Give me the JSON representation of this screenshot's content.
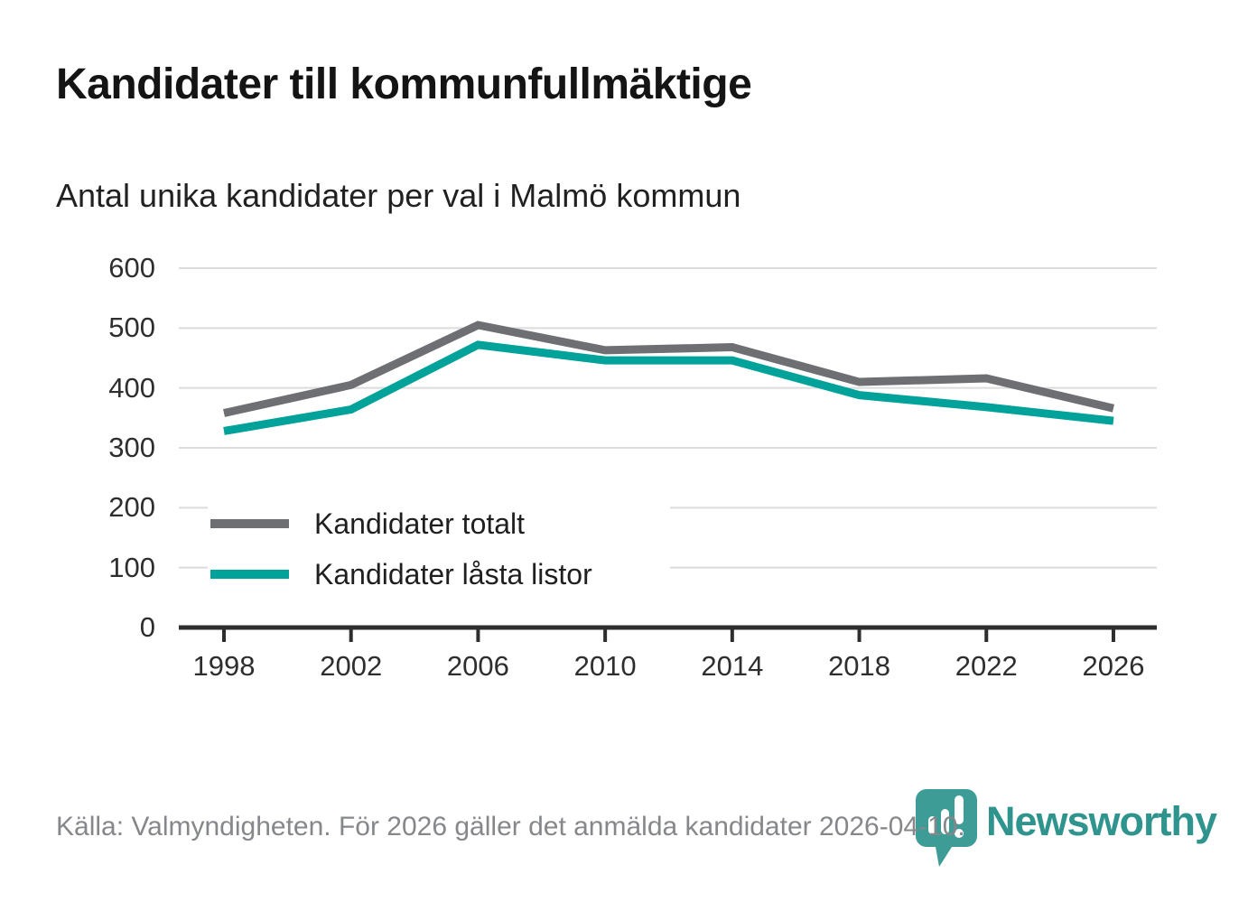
{
  "title": "Kandidater till kommunfullmäktige",
  "subtitle": "Antal unika kandidater per val i Malmö kommun",
  "footer": {
    "source_text": "Källa: Valmyndigheten. För 2026 gäller det anmälda kandidater 2026-04-10."
  },
  "branding": {
    "logo_text": "Newsworthy",
    "logo_icon": "bar-chart-pin-icon",
    "wordmark_color": "#2f948d",
    "pin_color": "#3d9d96"
  },
  "colors": {
    "background": "#ffffff",
    "gridline": "#dcdcdc",
    "axis": "#2e2e2e",
    "series_total": "#6e6f72",
    "series_locked": "#00a29a",
    "footer_text": "#85878a"
  },
  "chart_data": {
    "type": "line",
    "title": "Kandidater till kommunfullmäktige",
    "subtitle": "Antal unika kandidater per val i Malmö kommun",
    "categories": [
      "1998",
      "2002",
      "2006",
      "2010",
      "2014",
      "2018",
      "2022",
      "2026"
    ],
    "series": [
      {
        "name": "Kandidater totalt",
        "color": "#6e6f72",
        "values": [
          358,
          405,
          505,
          463,
          468,
          410,
          416,
          366
        ]
      },
      {
        "name": "Kandidater låsta listor",
        "color": "#00a29a",
        "values": [
          328,
          364,
          472,
          446,
          446,
          388,
          368,
          345
        ]
      }
    ],
    "xlabel": "",
    "ylabel": "",
    "ylim": [
      0,
      600
    ],
    "yticks": [
      0,
      100,
      200,
      300,
      400,
      500,
      600
    ],
    "grid": "horizontal",
    "legend_position": "inside-left-bottom"
  }
}
